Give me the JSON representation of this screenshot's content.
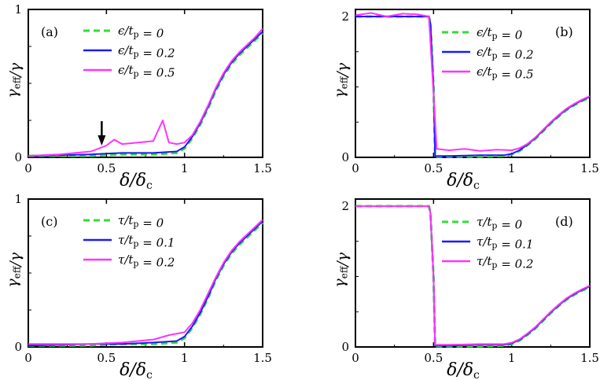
{
  "chart_data": [
    {
      "panel_label": "(a)",
      "type": "line",
      "xlabel": "δ/δc",
      "ylabel": "γeff/γ",
      "xlim": [
        0,
        1.5
      ],
      "ylim": [
        0,
        1
      ],
      "xticks": [
        "0",
        "0.5",
        "1",
        "1.5"
      ],
      "yticks": [
        "0",
        "1"
      ],
      "legend_position": "top-left",
      "annotation": "arrow pointing down at δ/δc = 0.5",
      "series": [
        {
          "name": "ϵ/tp = 0",
          "color": "#33dd33",
          "style": "dashed",
          "x": [
            0,
            0.2,
            0.4,
            0.6,
            0.8,
            0.95,
            1.0,
            1.05,
            1.1,
            1.15,
            1.2,
            1.25,
            1.3,
            1.35,
            1.4,
            1.45,
            1.5
          ],
          "y": [
            0.01,
            0.01,
            0.01,
            0.02,
            0.02,
            0.03,
            0.06,
            0.13,
            0.22,
            0.33,
            0.45,
            0.55,
            0.63,
            0.69,
            0.74,
            0.79,
            0.84
          ]
        },
        {
          "name": "ϵ/tp = 0.2",
          "color": "#1a1aff",
          "style": "solid",
          "x": [
            0,
            0.2,
            0.4,
            0.6,
            0.8,
            0.95,
            1.0,
            1.05,
            1.1,
            1.15,
            1.2,
            1.25,
            1.3,
            1.35,
            1.4,
            1.45,
            1.5
          ],
          "y": [
            0.01,
            0.015,
            0.02,
            0.03,
            0.03,
            0.04,
            0.07,
            0.14,
            0.23,
            0.34,
            0.46,
            0.56,
            0.64,
            0.7,
            0.75,
            0.8,
            0.85
          ]
        },
        {
          "name": "ϵ/tp = 0.5",
          "color": "#ff33ff",
          "style": "solid",
          "x": [
            0,
            0.2,
            0.4,
            0.5,
            0.55,
            0.6,
            0.7,
            0.8,
            0.86,
            0.9,
            0.95,
            1.0,
            1.05,
            1.1,
            1.15,
            1.2,
            1.25,
            1.3,
            1.35,
            1.4,
            1.45,
            1.5
          ],
          "y": [
            0.01,
            0.02,
            0.04,
            0.08,
            0.12,
            0.09,
            0.1,
            0.11,
            0.25,
            0.1,
            0.09,
            0.1,
            0.15,
            0.24,
            0.35,
            0.47,
            0.57,
            0.65,
            0.71,
            0.76,
            0.81,
            0.87
          ]
        }
      ]
    },
    {
      "panel_label": "(b)",
      "type": "line",
      "xlabel": "δ/δc",
      "ylabel": "γeff/γ",
      "xlim": [
        0,
        1.5
      ],
      "ylim": [
        0,
        2.1
      ],
      "xticks": [
        "0",
        "0.5",
        "1",
        "1.5"
      ],
      "yticks": [
        "0",
        "2"
      ],
      "legend_position": "top-right",
      "series": [
        {
          "name": "ϵ/tp = 0",
          "color": "#33dd33",
          "style": "dashed",
          "x": [
            0,
            0.2,
            0.4,
            0.47,
            0.48,
            0.5,
            0.51,
            0.6,
            0.8,
            0.95,
            1.0,
            1.05,
            1.1,
            1.15,
            1.2,
            1.25,
            1.3,
            1.35,
            1.4,
            1.45,
            1.5
          ],
          "y": [
            2.0,
            2.0,
            2.0,
            2.0,
            1.9,
            1.0,
            0.01,
            0.01,
            0.01,
            0.02,
            0.04,
            0.09,
            0.17,
            0.26,
            0.37,
            0.48,
            0.58,
            0.67,
            0.74,
            0.8,
            0.85
          ]
        },
        {
          "name": "ϵ/tp = 0.2",
          "color": "#1a1aff",
          "style": "solid",
          "x": [
            0,
            0.2,
            0.4,
            0.47,
            0.48,
            0.5,
            0.51,
            0.6,
            0.8,
            0.95,
            1.0,
            1.05,
            1.1,
            1.15,
            1.2,
            1.25,
            1.3,
            1.35,
            1.4,
            1.45,
            1.5
          ],
          "y": [
            2.0,
            2.0,
            2.0,
            2.0,
            1.9,
            1.0,
            0.02,
            0.02,
            0.03,
            0.03,
            0.05,
            0.1,
            0.18,
            0.27,
            0.38,
            0.49,
            0.59,
            0.68,
            0.75,
            0.81,
            0.86
          ]
        },
        {
          "name": "ϵ/tp = 0.5",
          "color": "#ff33ff",
          "style": "solid",
          "x": [
            0,
            0.1,
            0.2,
            0.3,
            0.4,
            0.47,
            0.5,
            0.52,
            0.6,
            0.7,
            0.8,
            0.9,
            1.0,
            1.05,
            1.1,
            1.15,
            1.2,
            1.25,
            1.3,
            1.35,
            1.4,
            1.45,
            1.5
          ],
          "y": [
            2.02,
            2.05,
            2.0,
            2.04,
            2.03,
            2.0,
            0.9,
            0.12,
            0.1,
            0.12,
            0.09,
            0.11,
            0.1,
            0.13,
            0.19,
            0.28,
            0.39,
            0.5,
            0.6,
            0.69,
            0.76,
            0.82,
            0.87
          ]
        }
      ]
    },
    {
      "panel_label": "(c)",
      "type": "line",
      "xlabel": "δ/δc",
      "ylabel": "γeff/γ",
      "xlim": [
        0,
        1.5
      ],
      "ylim": [
        0,
        1
      ],
      "xticks": [
        "0",
        "0.5",
        "1",
        "1.5"
      ],
      "yticks": [
        "0",
        "1"
      ],
      "legend_position": "top-left",
      "series": [
        {
          "name": "τ/tp = 0",
          "color": "#33dd33",
          "style": "dashed",
          "x": [
            0,
            0.2,
            0.4,
            0.6,
            0.8,
            0.95,
            1.0,
            1.05,
            1.1,
            1.15,
            1.2,
            1.25,
            1.3,
            1.35,
            1.4,
            1.45,
            1.5
          ],
          "y": [
            0.01,
            0.01,
            0.01,
            0.02,
            0.02,
            0.03,
            0.06,
            0.13,
            0.22,
            0.33,
            0.45,
            0.55,
            0.63,
            0.69,
            0.74,
            0.79,
            0.84
          ]
        },
        {
          "name": "τ/tp = 0.1",
          "color": "#1a1aff",
          "style": "solid",
          "x": [
            0,
            0.2,
            0.4,
            0.6,
            0.8,
            0.95,
            1.0,
            1.05,
            1.1,
            1.15,
            1.2,
            1.25,
            1.3,
            1.35,
            1.4,
            1.45,
            1.5
          ],
          "y": [
            0.01,
            0.015,
            0.02,
            0.02,
            0.03,
            0.04,
            0.07,
            0.14,
            0.23,
            0.34,
            0.46,
            0.56,
            0.64,
            0.7,
            0.75,
            0.8,
            0.85
          ]
        },
        {
          "name": "τ/tp = 0.2",
          "color": "#ff33ff",
          "style": "solid",
          "x": [
            0,
            0.2,
            0.4,
            0.6,
            0.8,
            0.9,
            0.95,
            1.0,
            1.05,
            1.1,
            1.15,
            1.2,
            1.25,
            1.3,
            1.35,
            1.4,
            1.45,
            1.5
          ],
          "y": [
            0.02,
            0.02,
            0.02,
            0.03,
            0.05,
            0.08,
            0.09,
            0.1,
            0.16,
            0.25,
            0.36,
            0.47,
            0.57,
            0.65,
            0.71,
            0.76,
            0.81,
            0.86
          ]
        }
      ]
    },
    {
      "panel_label": "(d)",
      "type": "line",
      "xlabel": "δ/δc",
      "ylabel": "γeff/γ",
      "xlim": [
        0,
        1.5
      ],
      "ylim": [
        0,
        2.1
      ],
      "xticks": [
        "0",
        "0.5",
        "1",
        "1.5"
      ],
      "yticks": [
        "0",
        "2"
      ],
      "legend_position": "top-right",
      "series": [
        {
          "name": "τ/tp = 0",
          "color": "#33dd33",
          "style": "dashed",
          "x": [
            0,
            0.2,
            0.4,
            0.47,
            0.48,
            0.5,
            0.51,
            0.6,
            0.8,
            0.95,
            1.0,
            1.05,
            1.1,
            1.15,
            1.2,
            1.25,
            1.3,
            1.35,
            1.4,
            1.45,
            1.5
          ],
          "y": [
            2.0,
            2.0,
            2.0,
            2.0,
            1.9,
            1.0,
            0.01,
            0.01,
            0.01,
            0.02,
            0.04,
            0.09,
            0.17,
            0.26,
            0.37,
            0.48,
            0.58,
            0.67,
            0.74,
            0.8,
            0.85
          ]
        },
        {
          "name": "τ/tp = 0.1",
          "color": "#1a1aff",
          "style": "solid",
          "x": [
            0,
            0.2,
            0.4,
            0.47,
            0.48,
            0.5,
            0.51,
            0.6,
            0.8,
            0.95,
            1.0,
            1.05,
            1.1,
            1.15,
            1.2,
            1.25,
            1.3,
            1.35,
            1.4,
            1.45,
            1.5
          ],
          "y": [
            2.0,
            2.0,
            2.0,
            2.0,
            1.9,
            1.0,
            0.02,
            0.02,
            0.03,
            0.03,
            0.05,
            0.1,
            0.18,
            0.27,
            0.38,
            0.49,
            0.59,
            0.68,
            0.75,
            0.81,
            0.86
          ]
        },
        {
          "name": "τ/tp = 0.2",
          "color": "#ff33ff",
          "style": "solid",
          "x": [
            0,
            0.2,
            0.4,
            0.47,
            0.48,
            0.5,
            0.51,
            0.6,
            0.8,
            0.95,
            1.0,
            1.05,
            1.1,
            1.15,
            1.2,
            1.25,
            1.3,
            1.35,
            1.4,
            1.45,
            1.5
          ],
          "y": [
            2.0,
            2.0,
            2.0,
            2.0,
            1.9,
            1.0,
            0.03,
            0.03,
            0.04,
            0.04,
            0.06,
            0.11,
            0.19,
            0.28,
            0.39,
            0.5,
            0.6,
            0.69,
            0.76,
            0.82,
            0.87
          ]
        }
      ]
    }
  ]
}
